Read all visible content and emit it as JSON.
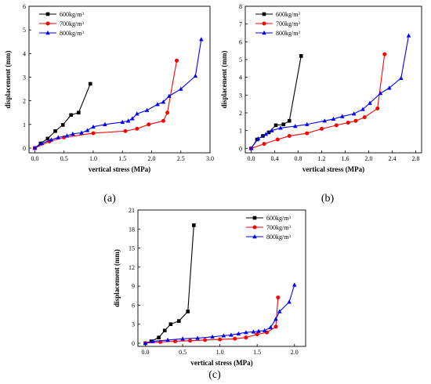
{
  "chart_data": [
    {
      "type": "line",
      "panel_label": "(a)",
      "xlabel": "vertical stress (MPa)",
      "ylabel": "displacement (mm)",
      "xlim": [
        -0.1,
        3.0
      ],
      "ylim": [
        -0.2,
        6
      ],
      "xticks": [
        0.0,
        0.5,
        1.0,
        1.5,
        2.0,
        2.5,
        3.0
      ],
      "yticks": [
        0,
        1,
        2,
        3,
        4,
        5,
        6
      ],
      "x_decimals": 1,
      "legend_position": "top-left",
      "series": [
        {
          "name": "600kg/m³",
          "color": "#000000",
          "marker": "square",
          "x": [
            0.0,
            0.1,
            0.22,
            0.35,
            0.48,
            0.62,
            0.75,
            0.95
          ],
          "y": [
            0.0,
            0.2,
            0.4,
            0.72,
            0.98,
            1.4,
            1.5,
            2.72
          ]
        },
        {
          "name": "700kg/m³",
          "color": "#ff0000",
          "marker": "circle",
          "x": [
            0.0,
            0.25,
            0.5,
            1.0,
            1.55,
            1.75,
            1.95,
            2.2,
            2.27,
            2.43
          ],
          "y": [
            0.0,
            0.28,
            0.45,
            0.63,
            0.72,
            0.82,
            1.0,
            1.15,
            1.5,
            3.7
          ]
        },
        {
          "name": "800kg/m³",
          "color": "#0000ff",
          "marker": "triangle",
          "x": [
            0.0,
            0.12,
            0.28,
            0.4,
            0.55,
            0.65,
            0.8,
            0.9,
            1.0,
            1.2,
            1.5,
            1.6,
            1.67,
            1.75,
            1.92,
            2.1,
            2.2,
            2.3,
            2.5,
            2.75,
            2.85
          ],
          "y": [
            0.0,
            0.2,
            0.35,
            0.45,
            0.52,
            0.6,
            0.65,
            0.75,
            0.9,
            1.0,
            1.1,
            1.15,
            1.25,
            1.45,
            1.6,
            1.85,
            1.95,
            2.2,
            2.5,
            3.05,
            4.6
          ]
        }
      ]
    },
    {
      "type": "line",
      "panel_label": "(b)",
      "xlabel": "vertical stress (MPa)",
      "ylabel": "displacement (mm)",
      "xlim": [
        -0.1,
        2.9
      ],
      "ylim": [
        -0.25,
        8
      ],
      "xticks": [
        0.0,
        0.4,
        0.8,
        1.2,
        1.6,
        2.0,
        2.4,
        2.8
      ],
      "yticks": [
        0,
        1,
        2,
        3,
        4,
        5,
        6,
        7,
        8
      ],
      "x_decimals": 1,
      "legend_position": "top-left",
      "series": [
        {
          "name": "600kg/m³",
          "color": "#000000",
          "marker": "square",
          "x": [
            0.0,
            0.1,
            0.2,
            0.3,
            0.42,
            0.55,
            0.65,
            0.85
          ],
          "y": [
            0.0,
            0.5,
            0.7,
            0.9,
            1.3,
            1.35,
            1.55,
            5.2
          ]
        },
        {
          "name": "700kg/m³",
          "color": "#ff0000",
          "marker": "circle",
          "x": [
            0.0,
            0.22,
            0.45,
            0.65,
            0.95,
            1.2,
            1.45,
            1.65,
            1.78,
            1.93,
            2.15,
            2.27
          ],
          "y": [
            0.0,
            0.25,
            0.5,
            0.7,
            0.85,
            1.1,
            1.3,
            1.45,
            1.55,
            1.75,
            2.25,
            5.3
          ]
        },
        {
          "name": "800kg/m³",
          "color": "#0000ff",
          "marker": "triangle",
          "x": [
            0.0,
            0.12,
            0.25,
            0.35,
            0.5,
            0.75,
            0.95,
            1.25,
            1.4,
            1.55,
            1.75,
            1.9,
            2.02,
            2.2,
            2.35,
            2.55,
            2.68
          ],
          "y": [
            0.0,
            0.55,
            0.8,
            1.0,
            1.15,
            1.25,
            1.35,
            1.55,
            1.65,
            1.8,
            1.95,
            2.2,
            2.55,
            3.1,
            3.4,
            3.95,
            6.35
          ]
        }
      ]
    },
    {
      "type": "line",
      "panel_label": "(c)",
      "xlabel": "vertical stress (MPa)",
      "ylabel": "displacement (mm)",
      "xlim": [
        -0.1,
        2.15
      ],
      "ylim": [
        -0.5,
        21
      ],
      "xticks": [
        0.0,
        0.5,
        1.0,
        1.5,
        2.0
      ],
      "yticks": [
        0,
        3,
        6,
        9,
        12,
        15,
        18,
        21
      ],
      "x_decimals": 1,
      "legend_position": "top-right",
      "series": [
        {
          "name": "600kg/m³",
          "color": "#000000",
          "marker": "square",
          "x": [
            0.0,
            0.08,
            0.18,
            0.26,
            0.34,
            0.45,
            0.57,
            0.65
          ],
          "y": [
            0.0,
            0.3,
            0.9,
            2.0,
            3.0,
            3.5,
            5.0,
            18.6
          ]
        },
        {
          "name": "700kg/m³",
          "color": "#ff0000",
          "marker": "circle",
          "x": [
            0.0,
            0.2,
            0.4,
            0.6,
            0.8,
            1.0,
            1.2,
            1.35,
            1.5,
            1.63,
            1.75,
            1.78
          ],
          "y": [
            0.0,
            0.2,
            0.3,
            0.4,
            0.5,
            0.6,
            0.7,
            0.9,
            1.4,
            1.7,
            2.6,
            7.2
          ]
        },
        {
          "name": "800kg/m³",
          "color": "#0000ff",
          "marker": "triangle",
          "x": [
            0.0,
            0.1,
            0.3,
            0.5,
            0.7,
            0.9,
            1.05,
            1.15,
            1.25,
            1.35,
            1.45,
            1.52,
            1.6,
            1.68,
            1.75,
            1.8,
            1.93,
            2.0
          ],
          "y": [
            0.0,
            0.3,
            0.5,
            0.7,
            0.8,
            1.0,
            1.2,
            1.3,
            1.5,
            1.7,
            1.8,
            1.9,
            2.0,
            2.5,
            3.8,
            5.0,
            6.5,
            9.2
          ]
        }
      ]
    }
  ]
}
